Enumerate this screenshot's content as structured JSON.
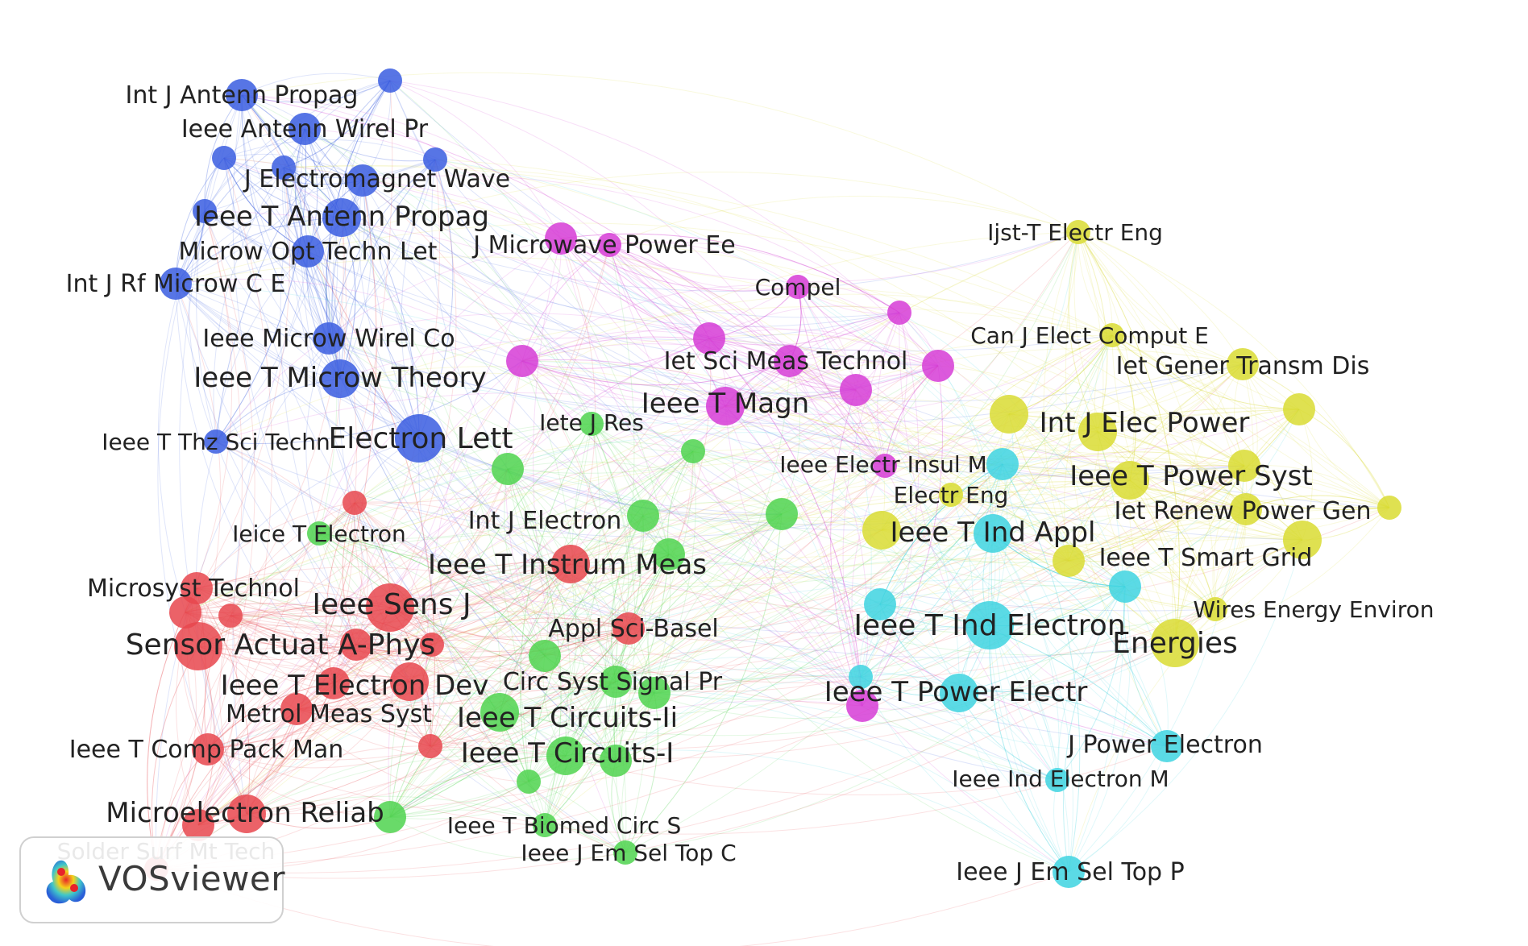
{
  "logo": {
    "text": "VOSviewer",
    "icon": "vosviewer-logo-icon"
  },
  "clusters": {
    "blue": "#3a5de0",
    "magenta": "#d63cd6",
    "red": "#e8474d",
    "green": "#4fd44f",
    "yellow": "#d9dc33",
    "cyan": "#3ed3e0"
  },
  "nodes": [
    {
      "label": "Int J Antenn Propag",
      "cluster": "blue",
      "weight": 3
    },
    {
      "label": "Ieee Antenn Wirel Pr",
      "cluster": "blue",
      "weight": 3
    },
    {
      "label": "J Electromagnet Wave",
      "cluster": "blue",
      "weight": 3
    },
    {
      "label": "Ieee T Antenn Propag",
      "cluster": "blue",
      "weight": 4
    },
    {
      "label": "Microw Opt Techn Let",
      "cluster": "blue",
      "weight": 3
    },
    {
      "label": "Int J Rf Microw C E",
      "cluster": "blue",
      "weight": 3
    },
    {
      "label": "Ieee Microw Wirel Co",
      "cluster": "blue",
      "weight": 3
    },
    {
      "label": "Ieee T Microw Theory",
      "cluster": "blue",
      "weight": 4
    },
    {
      "label": "Ieee T Thz Sci Techn",
      "cluster": "blue",
      "weight": 2
    },
    {
      "label": "Electron Lett",
      "cluster": "blue",
      "weight": 5
    },
    {
      "label": "",
      "cluster": "blue",
      "weight": 2
    },
    {
      "label": "",
      "cluster": "blue",
      "weight": 2
    },
    {
      "label": "",
      "cluster": "blue",
      "weight": 2
    },
    {
      "label": "",
      "cluster": "blue",
      "weight": 2
    },
    {
      "label": "",
      "cluster": "blue",
      "weight": 2
    },
    {
      "label": "J Microwave Power Ee",
      "cluster": "magenta",
      "weight": 3
    },
    {
      "label": "Compel",
      "cluster": "magenta",
      "weight": 2
    },
    {
      "label": "Iet Sci Meas Technol",
      "cluster": "magenta",
      "weight": 3
    },
    {
      "label": "Ieee T Magn",
      "cluster": "magenta",
      "weight": 4
    },
    {
      "label": "Ieee Electr Insul M",
      "cluster": "magenta",
      "weight": 2
    },
    {
      "label": "",
      "cluster": "magenta",
      "weight": 3
    },
    {
      "label": "",
      "cluster": "magenta",
      "weight": 3
    },
    {
      "label": "",
      "cluster": "magenta",
      "weight": 3
    },
    {
      "label": "",
      "cluster": "magenta",
      "weight": 2
    },
    {
      "label": "",
      "cluster": "magenta",
      "weight": 3
    },
    {
      "label": "",
      "cluster": "magenta",
      "weight": 2
    },
    {
      "label": "Ieice T Electron",
      "cluster": "green",
      "weight": 2
    },
    {
      "label": "Iete J Res",
      "cluster": "green",
      "weight": 2
    },
    {
      "label": "Int J Electron",
      "cluster": "green",
      "weight": 3
    },
    {
      "label": "Appl Sci-Basel",
      "cluster": "red",
      "weight": 3
    },
    {
      "label": "Circ Syst Signal Pr",
      "cluster": "green",
      "weight": 3
    },
    {
      "label": "Ieee T Circuits-Ii",
      "cluster": "green",
      "weight": 4
    },
    {
      "label": "Ieee T Circuits-I",
      "cluster": "green",
      "weight": 4
    },
    {
      "label": "Ieee T Biomed Circ S",
      "cluster": "green",
      "weight": 2
    },
    {
      "label": "Ieee J Em Sel Top C",
      "cluster": "green",
      "weight": 2
    },
    {
      "label": "",
      "cluster": "green",
      "weight": 3
    },
    {
      "label": "",
      "cluster": "green",
      "weight": 3
    },
    {
      "label": "",
      "cluster": "green",
      "weight": 2
    },
    {
      "label": "",
      "cluster": "green",
      "weight": 3
    },
    {
      "label": "",
      "cluster": "green",
      "weight": 3
    },
    {
      "label": "",
      "cluster": "green",
      "weight": 3
    },
    {
      "label": "",
      "cluster": "green",
      "weight": 2
    },
    {
      "label": "",
      "cluster": "green",
      "weight": 3
    },
    {
      "label": "",
      "cluster": "green",
      "weight": 3
    },
    {
      "label": "Microsyst Technol",
      "cluster": "red",
      "weight": 3
    },
    {
      "label": "Ieee Sens J",
      "cluster": "red",
      "weight": 5
    },
    {
      "label": "Ieee T Instrum Meas",
      "cluster": "red",
      "weight": 4
    },
    {
      "label": "Sensor Actuat A-Phys",
      "cluster": "red",
      "weight": 5
    },
    {
      "label": "Ieee T Electron Dev",
      "cluster": "red",
      "weight": 4
    },
    {
      "label": "Metrol Meas Syst",
      "cluster": "red",
      "weight": 3
    },
    {
      "label": "Ieee T Comp Pack Man",
      "cluster": "red",
      "weight": 3
    },
    {
      "label": "Microelectron Reliab",
      "cluster": "red",
      "weight": 4
    },
    {
      "label": "Solder Surf Mt Tech",
      "cluster": "red",
      "weight": 2
    },
    {
      "label": "",
      "cluster": "red",
      "weight": 2
    },
    {
      "label": "",
      "cluster": "red",
      "weight": 3
    },
    {
      "label": "",
      "cluster": "red",
      "weight": 2
    },
    {
      "label": "",
      "cluster": "red",
      "weight": 2
    },
    {
      "label": "",
      "cluster": "red",
      "weight": 3
    },
    {
      "label": "",
      "cluster": "red",
      "weight": 2
    },
    {
      "label": "",
      "cluster": "red",
      "weight": 3
    },
    {
      "label": "",
      "cluster": "red",
      "weight": 3
    },
    {
      "label": "Ijst-T Electr Eng",
      "cluster": "yellow",
      "weight": 2
    },
    {
      "label": "Can J Elect Comput E",
      "cluster": "yellow",
      "weight": 2
    },
    {
      "label": "Iet Gener Transm Dis",
      "cluster": "yellow",
      "weight": 3
    },
    {
      "label": "Int J Elec Power",
      "cluster": "yellow",
      "weight": 4
    },
    {
      "label": "Ieee T Power Syst",
      "cluster": "yellow",
      "weight": 4
    },
    {
      "label": "Iet Renew Power Gen",
      "cluster": "yellow",
      "weight": 3
    },
    {
      "label": "Ieee T Smart Grid",
      "cluster": "yellow",
      "weight": 3
    },
    {
      "label": "Wires Energy Environ",
      "cluster": "yellow",
      "weight": 2
    },
    {
      "label": "Energies",
      "cluster": "yellow",
      "weight": 5
    },
    {
      "label": "Electr Eng",
      "cluster": "yellow",
      "weight": 2
    },
    {
      "label": "",
      "cluster": "yellow",
      "weight": 4
    },
    {
      "label": "",
      "cluster": "yellow",
      "weight": 4
    },
    {
      "label": "",
      "cluster": "yellow",
      "weight": 3
    },
    {
      "label": "",
      "cluster": "yellow",
      "weight": 2
    },
    {
      "label": "",
      "cluster": "yellow",
      "weight": 4
    },
    {
      "label": "",
      "cluster": "yellow",
      "weight": 3
    },
    {
      "label": "Ieee T Ind Appl",
      "cluster": "cyan",
      "weight": 4
    },
    {
      "label": "Ieee T Ind Electron",
      "cluster": "cyan",
      "weight": 5
    },
    {
      "label": "Ieee T Power Electr",
      "cluster": "cyan",
      "weight": 4
    },
    {
      "label": "J Power Electron",
      "cluster": "cyan",
      "weight": 3
    },
    {
      "label": "Ieee Ind Electron M",
      "cluster": "cyan",
      "weight": 2
    },
    {
      "label": "Ieee J Em Sel Top P",
      "cluster": "cyan",
      "weight": 3
    },
    {
      "label": "",
      "cluster": "cyan",
      "weight": 3
    },
    {
      "label": "",
      "cluster": "cyan",
      "weight": 3
    },
    {
      "label": "",
      "cluster": "cyan",
      "weight": 3
    },
    {
      "label": "",
      "cluster": "cyan",
      "weight": 2
    },
    {
      "label": "",
      "cluster": "magenta",
      "weight": 3
    }
  ]
}
